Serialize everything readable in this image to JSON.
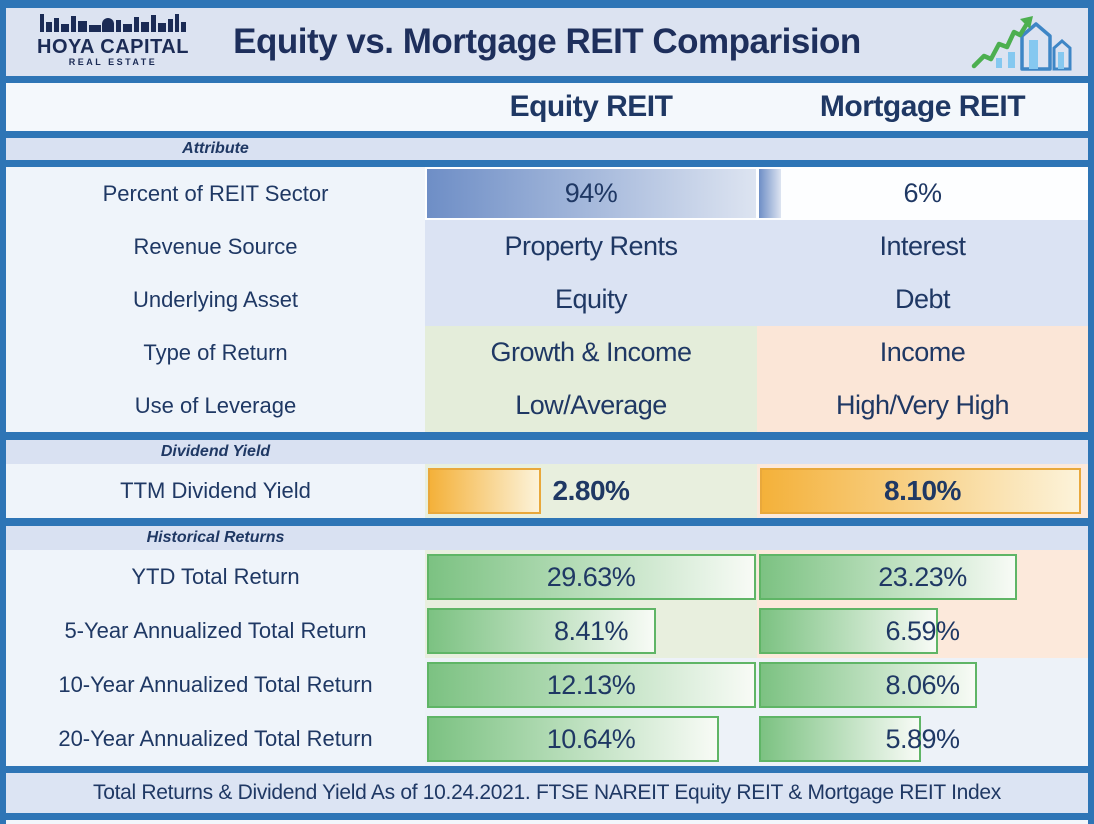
{
  "header": {
    "logo_top": "HOYA CAPITAL",
    "logo_bottom": "REAL ESTATE",
    "title": "Equity vs. Mortgage REIT Comparision",
    "icons": [
      "city-skyline-icon",
      "growth-chart-icon"
    ]
  },
  "columns": {
    "equity": "Equity REIT",
    "mortgage": "Mortgage REIT"
  },
  "sections": {
    "attribute": {
      "title": "Attribute",
      "rows": [
        {
          "label": "Percent of REIT Sector",
          "equity": "94%",
          "mortgage": "6%",
          "equity_bar_pct": 99,
          "mortgage_bar_pct": 6.5
        },
        {
          "label": "Revenue Source",
          "equity": "Property Rents",
          "mortgage": "Interest"
        },
        {
          "label": "Underlying Asset",
          "equity": "Equity",
          "mortgage": "Debt"
        },
        {
          "label": "Type of Return",
          "equity": "Growth & Income",
          "mortgage": "Income"
        },
        {
          "label": "Use of Leverage",
          "equity": "Low/Average",
          "mortgage": "High/Very High"
        }
      ]
    },
    "dividend": {
      "title": "Dividend Yield",
      "rows": [
        {
          "label": "TTM Dividend Yield",
          "equity": "2.80%",
          "mortgage": "8.10%",
          "equity_bar_pct": 34,
          "mortgage_bar_pct": 97
        }
      ]
    },
    "historical": {
      "title": "Historical Returns",
      "rows": [
        {
          "label": "YTD Total Return",
          "equity": "29.63%",
          "mortgage": "23.23%",
          "equity_bar_pct": 99,
          "mortgage_bar_pct": 78
        },
        {
          "label": "5-Year Annualized Total Return",
          "equity": "8.41%",
          "mortgage": "6.59%",
          "equity_bar_pct": 69,
          "mortgage_bar_pct": 54
        },
        {
          "label": "10-Year Annualized Total Return",
          "equity": "12.13%",
          "mortgage": "8.06%",
          "equity_bar_pct": 99,
          "mortgage_bar_pct": 66
        },
        {
          "label": "20-Year Annualized Total Return",
          "equity": "10.64%",
          "mortgage": "5.89%",
          "equity_bar_pct": 88,
          "mortgage_bar_pct": 49
        }
      ]
    }
  },
  "footer": {
    "text": "Total Returns & Dividend Yield As of 10.24.2021. FTSE NAREIT Equity REIT & Mortgage REIT Index"
  },
  "colors": {
    "navy_text": "#1F3864",
    "border_blue": "#2E75B6",
    "lavender_band": "#D9E1F2",
    "lavender_cell": "#DBE3F3",
    "light_green_cell": "#E4EDDA",
    "light_peach_cell": "#FBE6D7",
    "blue_bar": "#6E8EC6",
    "green_bar": "#7CC282",
    "green_bar_border": "#5FB566",
    "orange_bar": "#F4B13A",
    "orange_bar_border": "#E9A83B",
    "icon_green": "#4CAF50",
    "icon_blue": "#3E86C6"
  },
  "chart_data": {
    "type": "table",
    "title": "Equity vs. Mortgage REIT Comparision",
    "columns": [
      "Attribute",
      "Equity REIT",
      "Mortgage REIT"
    ],
    "rows": [
      [
        "Percent of REIT Sector",
        "94%",
        "6%"
      ],
      [
        "Revenue Source",
        "Property Rents",
        "Interest"
      ],
      [
        "Underlying Asset",
        "Equity",
        "Debt"
      ],
      [
        "Type of Return",
        "Growth & Income",
        "Income"
      ],
      [
        "Use of Leverage",
        "Low/Average",
        "High/Very High"
      ],
      [
        "TTM Dividend Yield",
        "2.80%",
        "8.10%"
      ],
      [
        "YTD Total Return",
        "29.63%",
        "23.23%"
      ],
      [
        "5-Year Annualized Total Return",
        "8.41%",
        "6.59%"
      ],
      [
        "10-Year Annualized Total Return",
        "12.13%",
        "8.06%"
      ],
      [
        "20-Year Annualized Total Return",
        "10.64%",
        "5.89%"
      ]
    ],
    "numeric": {
      "percent_of_reit_sector": {
        "equity": 94,
        "mortgage": 6
      },
      "ttm_dividend_yield_pct": {
        "equity": 2.8,
        "mortgage": 8.1
      },
      "ytd_total_return_pct": {
        "equity": 29.63,
        "mortgage": 23.23
      },
      "five_year_annualized_pct": {
        "equity": 8.41,
        "mortgage": 6.59
      },
      "ten_year_annualized_pct": {
        "equity": 12.13,
        "mortgage": 8.06
      },
      "twenty_year_annualized_pct": {
        "equity": 10.64,
        "mortgage": 5.89
      }
    },
    "note": "Total Returns & Dividend Yield As of 10.24.2021. FTSE NAREIT Equity REIT & Mortgage REIT Index"
  }
}
